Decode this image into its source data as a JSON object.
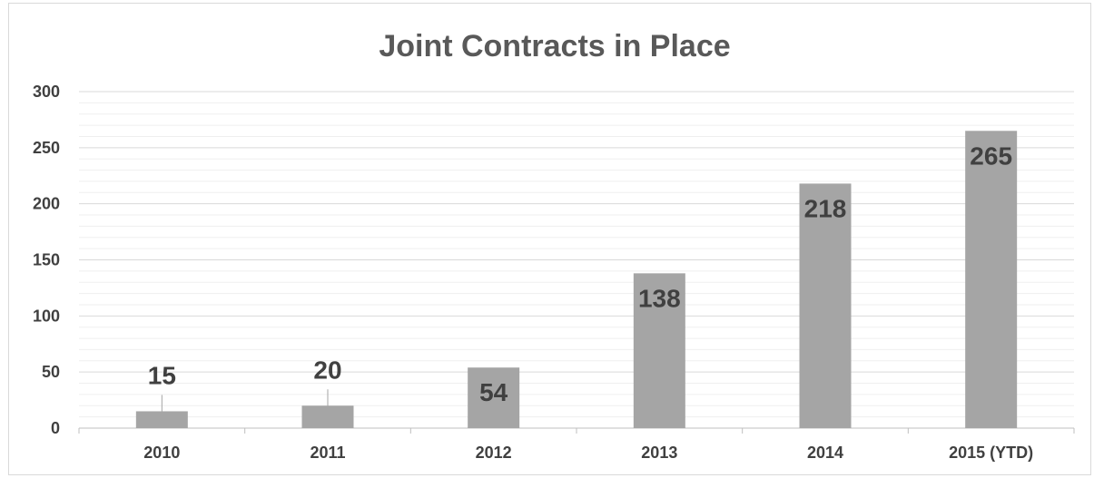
{
  "chart_data": {
    "type": "bar",
    "title": "Joint Contracts in Place",
    "categories": [
      "2010",
      "2011",
      "2012",
      "2013",
      "2014",
      "2015 (YTD)"
    ],
    "values": [
      15,
      20,
      54,
      138,
      218,
      265
    ],
    "data_labels": [
      "15",
      "20",
      "54",
      "138",
      "218",
      "265"
    ],
    "xlabel": "",
    "ylabel": "",
    "ylim": [
      0,
      300
    ],
    "y_ticks": [
      "0",
      "50",
      "100",
      "150",
      "200",
      "250",
      "300"
    ],
    "grid": true,
    "legend": "none",
    "colors": {
      "bar": "#a5a5a5",
      "gridline": "#d9d9d9",
      "text": "#404040",
      "title": "#595959"
    }
  }
}
